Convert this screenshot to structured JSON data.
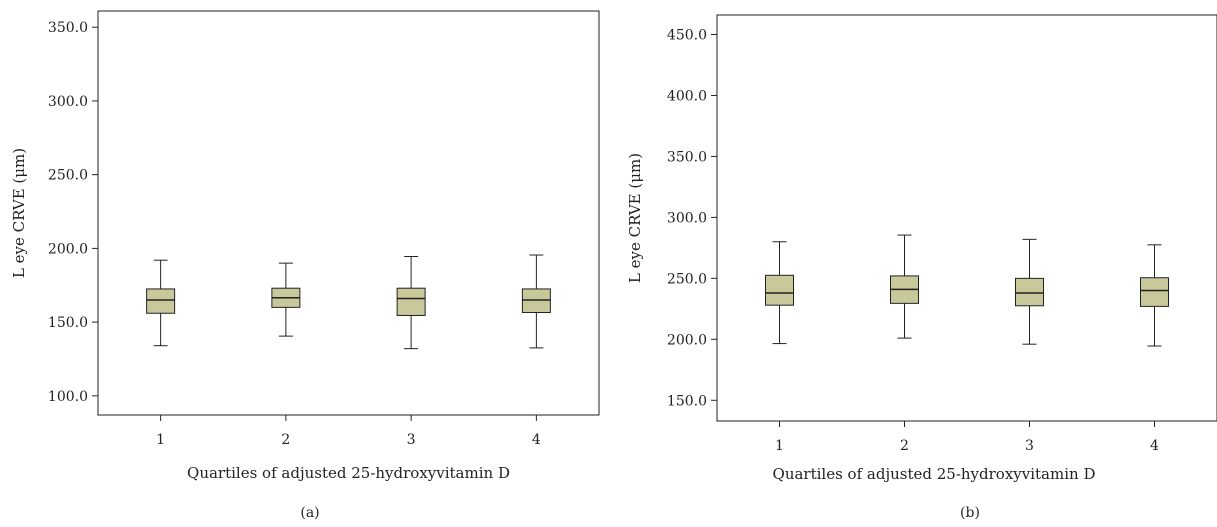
{
  "chart_data": [
    {
      "type": "box",
      "panel_label": "(a)",
      "ylabel": "L eye CRVE (μm)",
      "xlabel": "Quartiles of adjusted 25-hydroxyvitamin D",
      "categories": [
        "1",
        "2",
        "3",
        "4"
      ],
      "ylim": [
        87,
        361
      ],
      "yticks": [
        "100.0",
        "150.0",
        "200.0",
        "250.0",
        "300.0",
        "350.0"
      ],
      "grid": false,
      "box_color": "#c8c89a",
      "boxes": [
        {
          "min": 134,
          "q1": 156,
          "median": 165,
          "q3": 172.5,
          "max": 192
        },
        {
          "min": 140.5,
          "q1": 160,
          "median": 166.5,
          "q3": 173,
          "max": 190
        },
        {
          "min": 132,
          "q1": 154.5,
          "median": 166,
          "q3": 173,
          "max": 194.5
        },
        {
          "min": 132.5,
          "q1": 156.5,
          "median": 165,
          "q3": 172.5,
          "max": 195.5
        }
      ]
    },
    {
      "type": "box",
      "panel_label": "(b)",
      "ylabel": "L eye CRVE (μm)",
      "xlabel": "Quartiles of adjusted 25-hydroxyvitamin D",
      "categories": [
        "1",
        "2",
        "3",
        "4"
      ],
      "ylim": [
        133,
        466
      ],
      "yticks": [
        "150.0",
        "200.0",
        "250.0",
        "300.0",
        "350.0",
        "400.0",
        "450.0"
      ],
      "grid": false,
      "box_color": "#c8c89a",
      "boxes": [
        {
          "min": 196.5,
          "q1": 228,
          "median": 238,
          "q3": 252.5,
          "max": 280
        },
        {
          "min": 201,
          "q1": 229.5,
          "median": 241,
          "q3": 252,
          "max": 285.5
        },
        {
          "min": 196,
          "q1": 227.5,
          "median": 238,
          "q3": 250,
          "max": 282
        },
        {
          "min": 194.5,
          "q1": 227,
          "median": 240,
          "q3": 250.5,
          "max": 277.5
        }
      ]
    }
  ]
}
